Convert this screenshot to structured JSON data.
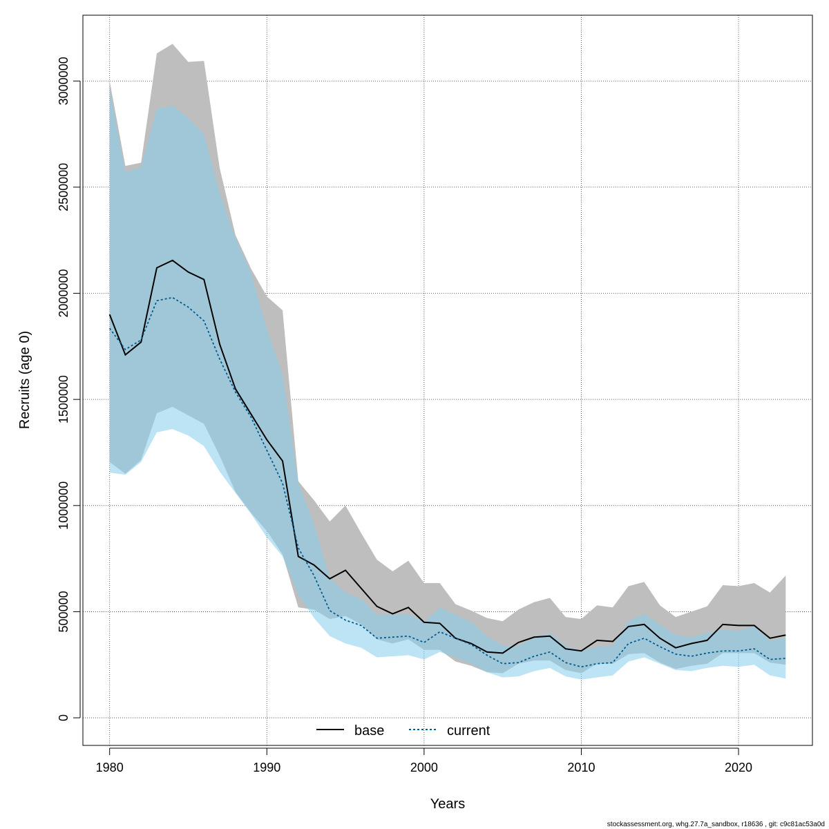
{
  "chart_data": {
    "type": "line",
    "xlabel": "Years",
    "ylabel": "Recruits (age 0)",
    "xlim": [
      1978.3,
      2024.7
    ],
    "ylim": [
      -130000,
      3310000
    ],
    "x_ticks": [
      1980,
      1990,
      2000,
      2010,
      2020
    ],
    "y_ticks": [
      0,
      500000,
      1000000,
      1500000,
      2000000,
      2500000,
      3000000
    ],
    "grid": true,
    "legend_position": "bottom-center",
    "x": [
      1980,
      1981,
      1982,
      1983,
      1984,
      1985,
      1986,
      1987,
      1988,
      1989,
      1990,
      1991,
      1992,
      1993,
      1994,
      1995,
      1996,
      1997,
      1998,
      1999,
      2000,
      2001,
      2002,
      2003,
      2004,
      2005,
      2006,
      2007,
      2008,
      2009,
      2010,
      2011,
      2012,
      2013,
      2014,
      2015,
      2016,
      2017,
      2018,
      2019,
      2020,
      2021,
      2022,
      2023
    ],
    "series": [
      {
        "name": "base",
        "color": "#000000",
        "line_style": "solid",
        "band_color": "#bebebe",
        "values": [
          1900000,
          1710000,
          1770000,
          2120000,
          2155000,
          2100000,
          2065000,
          1760000,
          1550000,
          1430000,
          1310000,
          1210000,
          760000,
          720000,
          655000,
          695000,
          610000,
          525000,
          490000,
          520000,
          450000,
          445000,
          375000,
          350000,
          310000,
          305000,
          355000,
          380000,
          385000,
          325000,
          315000,
          365000,
          360000,
          430000,
          440000,
          375000,
          330000,
          350000,
          365000,
          440000,
          435000,
          435000,
          375000,
          390000
        ],
        "lower": [
          1205000,
          1150000,
          1215000,
          1435000,
          1465000,
          1425000,
          1385000,
          1235000,
          1065000,
          965000,
          880000,
          770000,
          520000,
          510000,
          465000,
          480000,
          440000,
          370000,
          350000,
          370000,
          320000,
          320000,
          265000,
          245000,
          215000,
          210000,
          255000,
          270000,
          270000,
          225000,
          210000,
          255000,
          255000,
          300000,
          305000,
          260000,
          230000,
          245000,
          255000,
          305000,
          305000,
          305000,
          260000,
          250000
        ],
        "upper": [
          3000000,
          2600000,
          2615000,
          3130000,
          3175000,
          3090000,
          3095000,
          2590000,
          2275000,
          2115000,
          1985000,
          1920000,
          1115000,
          1025000,
          925000,
          1000000,
          870000,
          745000,
          690000,
          740000,
          635000,
          635000,
          535000,
          505000,
          470000,
          455000,
          510000,
          545000,
          565000,
          475000,
          465000,
          530000,
          520000,
          620000,
          640000,
          530000,
          475000,
          500000,
          525000,
          625000,
          620000,
          635000,
          590000,
          670000
        ]
      },
      {
        "name": "current",
        "color": "#005a8c",
        "line_style": "dotted",
        "band_color": "#87ceeb",
        "values": [
          1835000,
          1735000,
          1780000,
          1965000,
          1980000,
          1935000,
          1870000,
          1690000,
          1535000,
          1415000,
          1260000,
          1105000,
          800000,
          670000,
          505000,
          460000,
          435000,
          375000,
          380000,
          385000,
          355000,
          405000,
          375000,
          345000,
          295000,
          255000,
          260000,
          290000,
          310000,
          260000,
          240000,
          255000,
          260000,
          350000,
          375000,
          335000,
          300000,
          290000,
          305000,
          315000,
          315000,
          325000,
          275000,
          280000
        ],
        "lower": [
          1155000,
          1145000,
          1205000,
          1345000,
          1360000,
          1330000,
          1280000,
          1160000,
          1060000,
          960000,
          850000,
          760000,
          580000,
          470000,
          385000,
          350000,
          330000,
          285000,
          290000,
          295000,
          275000,
          310000,
          285000,
          255000,
          215000,
          190000,
          195000,
          220000,
          235000,
          195000,
          180000,
          190000,
          200000,
          265000,
          285000,
          255000,
          225000,
          220000,
          235000,
          245000,
          240000,
          250000,
          200000,
          185000
        ],
        "upper": [
          2960000,
          2570000,
          2595000,
          2870000,
          2885000,
          2825000,
          2750000,
          2470000,
          2260000,
          2095000,
          1830000,
          1615000,
          1110000,
          910000,
          660000,
          590000,
          560000,
          485000,
          485000,
          490000,
          450000,
          520000,
          485000,
          450000,
          385000,
          340000,
          340000,
          380000,
          400000,
          340000,
          315000,
          335000,
          340000,
          455000,
          490000,
          440000,
          390000,
          380000,
          400000,
          415000,
          410000,
          430000,
          365000,
          375000
        ]
      }
    ]
  },
  "footer_text": "stockassessment.org, whg.27.7a_sandbox, r18636 , git: c9c81ac53a0d"
}
